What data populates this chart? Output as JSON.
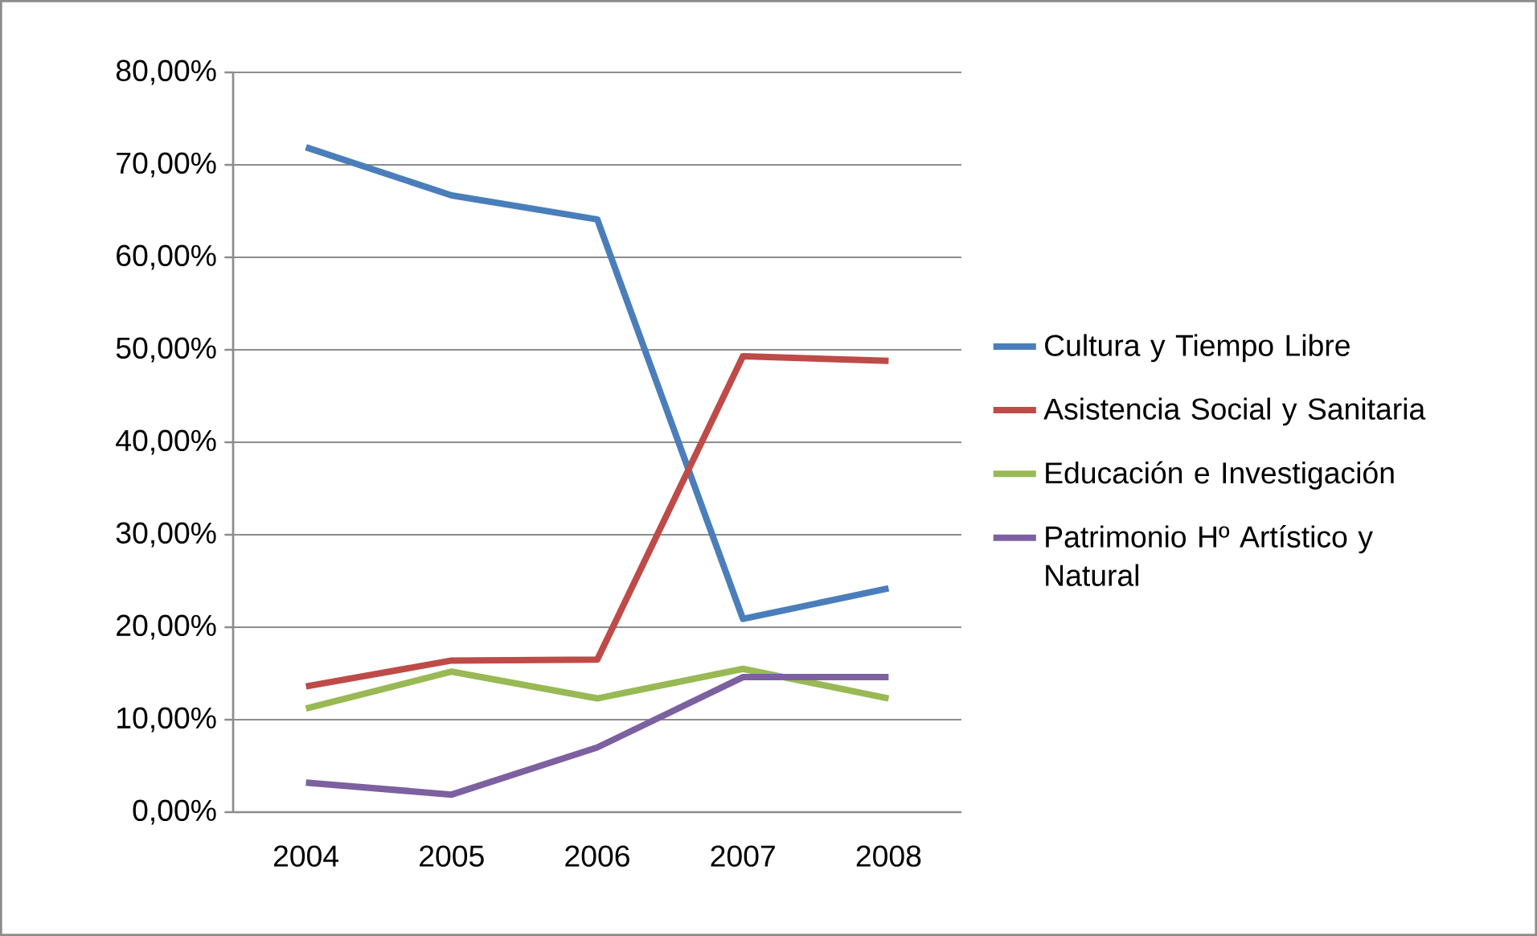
{
  "chart_data": {
    "type": "line",
    "categories": [
      "2004",
      "2005",
      "2006",
      "2007",
      "2008"
    ],
    "series": [
      {
        "name": "Cultura y Tiempo Libre",
        "color": "#4a7ebb",
        "values": [
          71.9,
          66.7,
          64.1,
          20.9,
          24.2
        ]
      },
      {
        "name": "Asistencia Social y Sanitaria",
        "color": "#be4b48",
        "values": [
          13.6,
          16.4,
          16.5,
          49.3,
          48.8
        ]
      },
      {
        "name": "Educación e Investigación",
        "color": "#98b954",
        "values": [
          11.2,
          15.2,
          12.3,
          15.5,
          12.3
        ]
      },
      {
        "name": "Patrimonio Hº Artístico y Natural",
        "color": "#7d60a0",
        "values": [
          3.2,
          1.9,
          7.0,
          14.6,
          14.6
        ]
      }
    ],
    "ylim": [
      0,
      80
    ],
    "yticks": [
      {
        "value": 0,
        "label": "0,00%"
      },
      {
        "value": 10,
        "label": "10,00%"
      },
      {
        "value": 20,
        "label": "20,00%"
      },
      {
        "value": 30,
        "label": "30,00%"
      },
      {
        "value": 40,
        "label": "40,00%"
      },
      {
        "value": 50,
        "label": "50,00%"
      },
      {
        "value": 60,
        "label": "60,00%"
      },
      {
        "value": 70,
        "label": "70,00%"
      },
      {
        "value": 80,
        "label": "80,00%"
      }
    ],
    "grid": "y",
    "legend": "right",
    "marker": "none",
    "line_style": "solid"
  }
}
